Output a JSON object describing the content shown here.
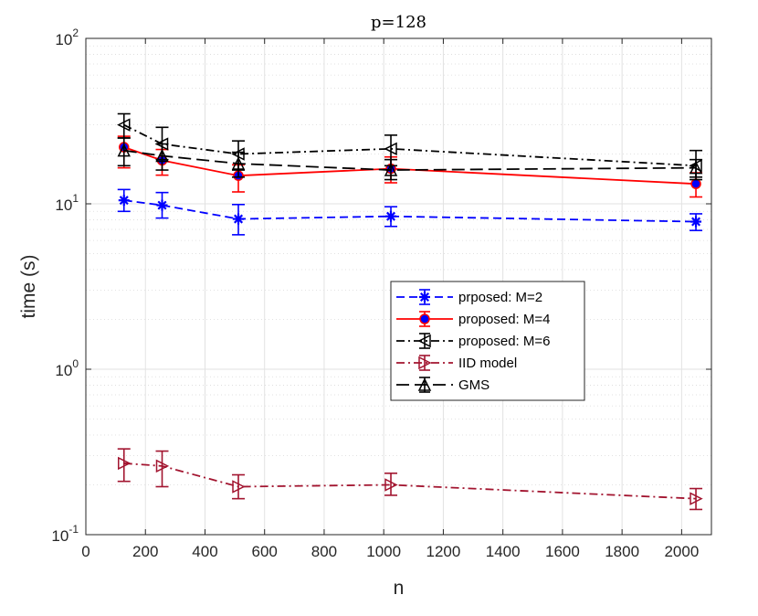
{
  "chart_data": {
    "type": "line",
    "title": "p=128",
    "xlabel": "n",
    "ylabel": "time (s)",
    "xlim": [
      0,
      2100
    ],
    "ylim": [
      0.1,
      100
    ],
    "yscale": "log",
    "grid": true,
    "legend_position": "center-right",
    "x": [
      128,
      256,
      512,
      1024,
      2048
    ],
    "x_ticks": [
      "0",
      "200",
      "400",
      "600",
      "800",
      "1000",
      "1200",
      "1400",
      "1600",
      "1800",
      "2000"
    ],
    "y_ticks": [
      {
        "base": "10",
        "exp": "-1",
        "value": 0.1
      },
      {
        "base": "10",
        "exp": "0",
        "value": 1
      },
      {
        "base": "10",
        "exp": "1",
        "value": 10
      },
      {
        "base": "10",
        "exp": "2",
        "value": 100
      }
    ],
    "series": [
      {
        "name": "prposed: M=2",
        "color": "#0000ff",
        "dash": "dashed",
        "marker": "star",
        "values": [
          10.5,
          9.8,
          8.1,
          8.4,
          7.8
        ],
        "err_low": [
          9.0,
          8.2,
          6.5,
          7.3,
          6.9
        ],
        "err_high": [
          12.2,
          11.7,
          9.9,
          9.6,
          8.7
        ]
      },
      {
        "name": "proposed: M=4",
        "color": "#ff0000",
        "dash": "solid",
        "marker": "circle",
        "values": [
          22.0,
          18.3,
          14.8,
          16.3,
          13.2
        ],
        "err_low": [
          16.5,
          14.9,
          11.8,
          13.4,
          11.0
        ],
        "err_high": [
          25.6,
          21.3,
          17.2,
          19.2,
          15.4
        ]
      },
      {
        "name": "proposed: M=6",
        "color": "#000000",
        "dash": "dashdot",
        "marker": "triangle-left",
        "values": [
          30.0,
          23.0,
          20.0,
          21.5,
          17.0
        ],
        "err_low": [
          25.0,
          18.5,
          16.0,
          17.0,
          14.0
        ],
        "err_high": [
          35.0,
          29.0,
          24.0,
          26.0,
          21.0
        ]
      },
      {
        "name": "IID model",
        "color": "#a2142f",
        "dash": "dashdot",
        "marker": "triangle-right",
        "values": [
          0.27,
          0.26,
          0.195,
          0.2,
          0.165
        ],
        "err_low": [
          0.21,
          0.195,
          0.165,
          0.173,
          0.142
        ],
        "err_high": [
          0.33,
          0.32,
          0.23,
          0.235,
          0.19
        ]
      },
      {
        "name": "GMS",
        "color": "#000000",
        "dash": "longdash",
        "marker": "triangle-up",
        "values": [
          21.0,
          19.5,
          17.5,
          16.0,
          16.5
        ],
        "err_low": [
          17.0,
          16.0,
          14.5,
          14.0,
          14.5
        ],
        "err_high": [
          25.0,
          23.0,
          20.5,
          18.5,
          18.5
        ]
      }
    ]
  }
}
